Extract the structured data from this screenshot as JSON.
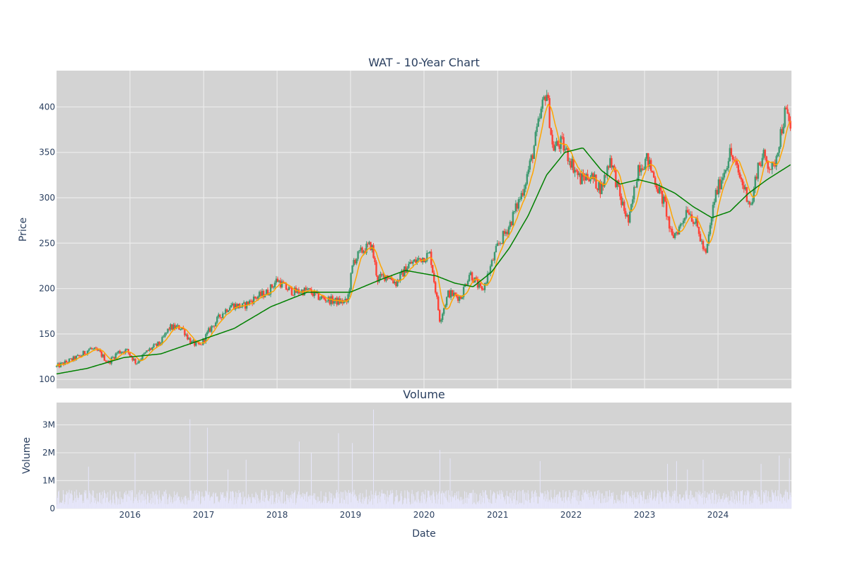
{
  "chart_data": [
    {
      "type": "candlestick",
      "title": "WAT - 10-Year Chart",
      "xlabel": "",
      "ylabel": "Price",
      "ylim": [
        90,
        440
      ],
      "x_range": [
        "2015-01-01",
        "2024-12-31"
      ],
      "yticks": [
        100,
        150,
        200,
        250,
        300,
        350,
        400
      ],
      "grid": true,
      "background": "#d3d3d3",
      "colors": {
        "increasing": "#3d9970",
        "decreasing": "#ff4136",
        "ma_short": "#ffa500",
        "ma_long": "#008000"
      },
      "series": [
        {
          "type": "close_anchors",
          "points": [
            [
              "2015-01-01",
              114
            ],
            [
              "2015-03-01",
              120
            ],
            [
              "2015-05-01",
              126
            ],
            [
              "2015-06-15",
              134
            ],
            [
              "2015-08-01",
              130
            ],
            [
              "2015-09-15",
              118
            ],
            [
              "2015-11-01",
              130
            ],
            [
              "2015-12-15",
              132
            ],
            [
              "2016-02-01",
              118
            ],
            [
              "2016-04-01",
              132
            ],
            [
              "2016-06-01",
              140
            ],
            [
              "2016-07-15",
              157
            ],
            [
              "2016-09-15",
              157
            ],
            [
              "2016-11-01",
              140
            ],
            [
              "2016-12-15",
              137
            ],
            [
              "2017-02-01",
              155
            ],
            [
              "2017-04-01",
              172
            ],
            [
              "2017-05-15",
              182
            ],
            [
              "2017-07-15",
              180
            ],
            [
              "2017-09-15",
              190
            ],
            [
              "2017-11-15",
              196
            ],
            [
              "2018-01-01",
              210
            ],
            [
              "2018-02-15",
              200
            ],
            [
              "2018-04-01",
              196
            ],
            [
              "2018-06-01",
              198
            ],
            [
              "2018-08-01",
              190
            ],
            [
              "2018-10-15",
              186
            ],
            [
              "2018-12-15",
              185
            ],
            [
              "2019-01-15",
              230
            ],
            [
              "2019-03-01",
              242
            ],
            [
              "2019-04-15",
              248
            ],
            [
              "2019-05-15",
              210
            ],
            [
              "2019-07-01",
              215
            ],
            [
              "2019-08-15",
              206
            ],
            [
              "2019-10-15",
              226
            ],
            [
              "2019-12-15",
              233
            ],
            [
              "2020-02-01",
              238
            ],
            [
              "2020-03-20",
              165
            ],
            [
              "2020-05-01",
              195
            ],
            [
              "2020-07-01",
              190
            ],
            [
              "2020-08-15",
              218
            ],
            [
              "2020-10-15",
              196
            ],
            [
              "2020-12-31",
              246
            ],
            [
              "2021-03-01",
              270
            ],
            [
              "2021-05-01",
              305
            ],
            [
              "2021-06-15",
              340
            ],
            [
              "2021-08-01",
              390
            ],
            [
              "2021-08-31",
              420
            ],
            [
              "2021-10-01",
              355
            ],
            [
              "2021-11-15",
              360
            ],
            [
              "2022-01-01",
              340
            ],
            [
              "2022-02-15",
              320
            ],
            [
              "2022-04-01",
              325
            ],
            [
              "2022-06-01",
              310
            ],
            [
              "2022-07-15",
              345
            ],
            [
              "2022-09-01",
              300
            ],
            [
              "2022-10-15",
              272
            ],
            [
              "2022-12-01",
              335
            ],
            [
              "2023-01-15",
              342
            ],
            [
              "2023-03-01",
              315
            ],
            [
              "2023-04-15",
              290
            ],
            [
              "2023-05-15",
              255
            ],
            [
              "2023-07-01",
              270
            ],
            [
              "2023-08-01",
              290
            ],
            [
              "2023-09-15",
              270
            ],
            [
              "2023-11-01",
              235
            ],
            [
              "2023-12-15",
              300
            ],
            [
              "2024-02-01",
              330
            ],
            [
              "2024-03-01",
              350
            ],
            [
              "2024-04-15",
              325
            ],
            [
              "2024-06-15",
              290
            ],
            [
              "2024-07-15",
              335
            ],
            [
              "2024-08-15",
              345
            ],
            [
              "2024-10-01",
              330
            ],
            [
              "2024-11-01",
              365
            ],
            [
              "2024-12-01",
              395
            ],
            [
              "2024-12-31",
              375
            ]
          ]
        },
        {
          "type": "line",
          "points": [
            [
              "2015-01-01",
              106
            ],
            [
              "2015-06-01",
              112
            ],
            [
              "2015-12-01",
              124
            ],
            [
              "2016-06-01",
              128
            ],
            [
              "2016-12-01",
              142
            ],
            [
              "2017-06-01",
              156
            ],
            [
              "2017-12-01",
              180
            ],
            [
              "2018-06-01",
              196
            ],
            [
              "2018-12-31",
              196
            ],
            [
              "2019-06-01",
              210
            ],
            [
              "2019-10-01",
              220
            ],
            [
              "2020-03-01",
              214
            ],
            [
              "2020-06-01",
              206
            ],
            [
              "2020-09-01",
              202
            ],
            [
              "2020-12-01",
              218
            ],
            [
              "2021-03-01",
              245
            ],
            [
              "2021-06-01",
              280
            ],
            [
              "2021-09-01",
              325
            ],
            [
              "2021-12-01",
              350
            ],
            [
              "2022-03-01",
              355
            ],
            [
              "2022-06-01",
              330
            ],
            [
              "2022-09-01",
              315
            ],
            [
              "2022-12-01",
              320
            ],
            [
              "2023-03-01",
              315
            ],
            [
              "2023-06-01",
              305
            ],
            [
              "2023-09-01",
              290
            ],
            [
              "2023-12-01",
              278
            ],
            [
              "2024-03-01",
              285
            ],
            [
              "2024-06-01",
              305
            ],
            [
              "2024-09-01",
              320
            ],
            [
              "2024-12-31",
              337
            ]
          ]
        }
      ]
    },
    {
      "type": "bar",
      "title": "Volume",
      "xlabel": "Date",
      "ylabel": "Volume",
      "ylim": [
        0,
        3800000
      ],
      "yticks": [
        0,
        1000000,
        2000000,
        3000000
      ],
      "ytick_labels": [
        "0",
        "1M",
        "2M",
        "3M"
      ],
      "xtick_labels": [
        "2016",
        "2017",
        "2018",
        "2019",
        "2020",
        "2021",
        "2022",
        "2023",
        "2024"
      ],
      "x_range": [
        "2015-01-01",
        "2024-12-31"
      ],
      "bar_color": "#e6e6fa",
      "typical_volume": 450000,
      "spikes": [
        [
          "2015-06-10",
          1500000
        ],
        [
          "2016-01-25",
          2000000
        ],
        [
          "2016-10-25",
          3200000
        ],
        [
          "2017-01-20",
          2900000
        ],
        [
          "2017-05-01",
          1400000
        ],
        [
          "2017-08-01",
          1750000
        ],
        [
          "2018-04-20",
          2400000
        ],
        [
          "2018-06-20",
          2000000
        ],
        [
          "2018-11-01",
          2700000
        ],
        [
          "2019-01-10",
          2350000
        ],
        [
          "2019-04-25",
          3550000
        ],
        [
          "2020-03-20",
          2100000
        ],
        [
          "2020-05-10",
          1800000
        ],
        [
          "2021-07-30",
          1700000
        ],
        [
          "2023-04-25",
          1600000
        ],
        [
          "2023-06-10",
          1700000
        ],
        [
          "2023-08-01",
          1400000
        ],
        [
          "2023-10-20",
          1750000
        ],
        [
          "2024-08-01",
          1600000
        ],
        [
          "2024-11-01",
          1900000
        ],
        [
          "2024-12-20",
          1800000
        ]
      ]
    }
  ]
}
